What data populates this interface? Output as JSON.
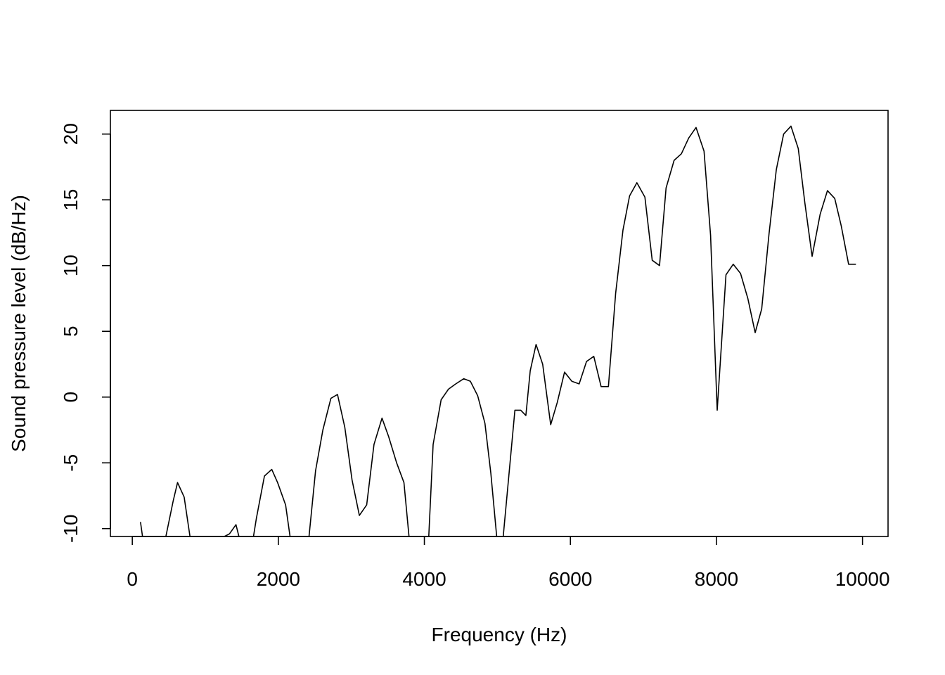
{
  "chart_data": {
    "type": "line",
    "title": "",
    "xlabel": "Frequency (Hz)",
    "ylabel": "Sound pressure level (dB/Hz)",
    "xlim": [
      -300,
      10350
    ],
    "ylim": [
      -10.6,
      21.8
    ],
    "xticks": [
      0,
      2000,
      4000,
      6000,
      8000,
      10000
    ],
    "yticks": [
      -10,
      -5,
      0,
      5,
      10,
      15,
      20
    ],
    "xtick_labels": [
      "0",
      "2000",
      "4000",
      "6000",
      "8000",
      "10000"
    ],
    "ytick_labels": [
      "-10",
      "-5",
      "0",
      "5",
      "10",
      "15",
      "20"
    ],
    "grid": false,
    "legend": "none",
    "series": [
      {
        "color": "#000000",
        "x": [
          112,
          140,
          180,
          260,
          360,
          460,
          560,
          620,
          710,
          790,
          860,
          960,
          1060,
          1160,
          1260,
          1330,
          1420,
          1460,
          1560,
          1660,
          1700,
          1810,
          1910,
          1990,
          2100,
          2160,
          2230,
          2320,
          2420,
          2510,
          2610,
          2720,
          2810,
          2910,
          3010,
          3110,
          3210,
          3310,
          3420,
          3510,
          3620,
          3720,
          3790,
          3860,
          3960,
          4060,
          4120,
          4230,
          4330,
          4430,
          4540,
          4630,
          4730,
          4830,
          4910,
          4990,
          5080,
          5160,
          5240,
          5320,
          5390,
          5450,
          5530,
          5620,
          5730,
          5820,
          5920,
          6020,
          6120,
          6220,
          6320,
          6420,
          6520,
          6620,
          6720,
          6810,
          6910,
          7020,
          7120,
          7220,
          7310,
          7420,
          7520,
          7620,
          7720,
          7830,
          7920,
          8010,
          8130,
          8230,
          8330,
          8430,
          8530,
          8620,
          8720,
          8820,
          8920,
          9020,
          9120,
          9210,
          9310,
          9420,
          9520,
          9620,
          9710,
          9810,
          9910
        ],
        "y": [
          -9.5,
          -10.6,
          -10.6,
          -10.6,
          -10.6,
          -10.6,
          -7.9,
          -6.5,
          -7.6,
          -10.6,
          -10.6,
          -10.6,
          -10.6,
          -10.6,
          -10.6,
          -10.4,
          -9.7,
          -10.6,
          -10.6,
          -10.6,
          -9.2,
          -6.0,
          -5.5,
          -6.5,
          -8.2,
          -10.6,
          -10.6,
          -10.6,
          -10.6,
          -5.6,
          -2.5,
          -0.1,
          0.2,
          -2.3,
          -6.3,
          -9.0,
          -8.2,
          -3.6,
          -1.6,
          -3.0,
          -5.0,
          -6.5,
          -10.6,
          -10.6,
          -10.6,
          -10.6,
          -3.6,
          -0.2,
          0.6,
          1.0,
          1.4,
          1.2,
          0.1,
          -2.0,
          -5.8,
          -10.6,
          -10.6,
          -5.8,
          -1.0,
          -1.0,
          -1.4,
          2.0,
          4.0,
          2.5,
          -2.1,
          -0.4,
          1.9,
          1.2,
          1.0,
          2.7,
          3.1,
          0.8,
          0.8,
          7.9,
          12.7,
          15.3,
          16.3,
          15.2,
          10.4,
          10.0,
          15.9,
          18.0,
          18.5,
          19.7,
          20.5,
          18.7,
          12.3,
          -1.0,
          9.3,
          10.1,
          9.4,
          7.5,
          4.9,
          6.7,
          12.4,
          17.3,
          20.0,
          20.6,
          18.9,
          14.8,
          10.7,
          13.9,
          15.7,
          15.1,
          13.0,
          10.1,
          10.1
        ]
      }
    ]
  }
}
